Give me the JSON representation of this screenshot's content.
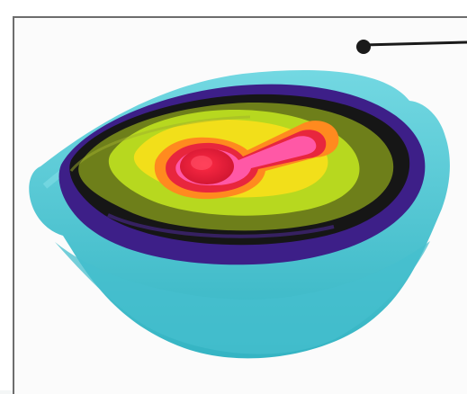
{
  "image": {
    "subject": "nesting-bowls-set-icon",
    "colors": {
      "bowl": "#4fc9d6",
      "bowl_shadow": "#2fa7b8",
      "ring_purple": "#3d1f88",
      "ring_black": "#161616",
      "ring_olive": "#6e7f1a",
      "ring_lime": "#b7d81f",
      "ring_yellow": "#f2df1a",
      "ring_orange": "#ff8a1f",
      "ring_red": "#e8263d",
      "ring_pink": "#ff58a6",
      "callout": "#1a1a1a"
    }
  }
}
